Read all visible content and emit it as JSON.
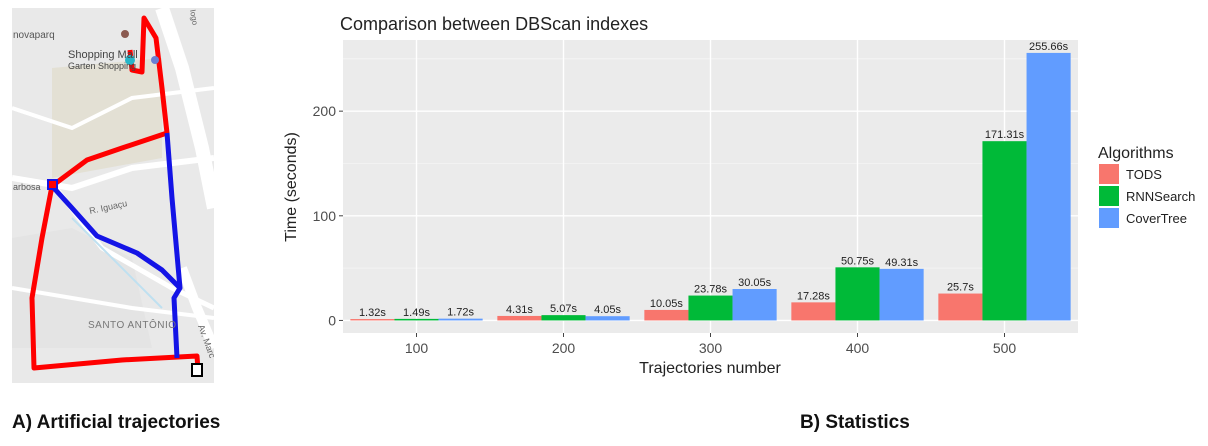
{
  "map": {
    "labels": {
      "place_top_left": "novaparq",
      "mall_name": "Shopping Mall",
      "mall_sub": "Garten Shopping",
      "street_left": "arbosa",
      "street_iguacu": "R. Iguaçu",
      "district": "SANTO ANTÔNIO",
      "avenue": "Av. Marc",
      "corner_top": "Iogo"
    },
    "colors": {
      "route_red": "#ff0000",
      "route_blue": "#1414e6",
      "land": "#e8e8e8",
      "road": "#ffffff"
    }
  },
  "captions": {
    "a": "A) Artificial trajectories",
    "b": "B) Statistics"
  },
  "chart_data": {
    "type": "bar",
    "title": "Comparison between DBScan indexes",
    "xlabel": "Trajectories number",
    "ylabel": "Time (seconds)",
    "categories": [
      "100",
      "200",
      "300",
      "400",
      "500"
    ],
    "ylim": [
      -12,
      268
    ],
    "yticks": [
      0,
      100,
      200
    ],
    "legend_title": "Algorithms",
    "legend_position": "right",
    "grid": true,
    "series": [
      {
        "name": "TODS",
        "color": "#f8766d",
        "values": [
          1.32,
          4.31,
          10.05,
          17.28,
          25.7
        ],
        "labels": [
          "1.32s",
          "4.31s",
          "10.05s",
          "17.28s",
          "25.7s"
        ]
      },
      {
        "name": "RNNSearch",
        "color": "#00ba38",
        "values": [
          1.49,
          5.07,
          23.78,
          50.75,
          171.31
        ],
        "labels": [
          "1.49s",
          "5.07s",
          "23.78s",
          "50.75s",
          "171.31s"
        ]
      },
      {
        "name": "CoverTree",
        "color": "#619cff",
        "values": [
          1.72,
          4.05,
          30.05,
          49.31,
          255.66
        ],
        "labels": [
          "1.72s",
          "4.05s",
          "30.05s",
          "49.31s",
          "255.66s"
        ]
      }
    ]
  }
}
